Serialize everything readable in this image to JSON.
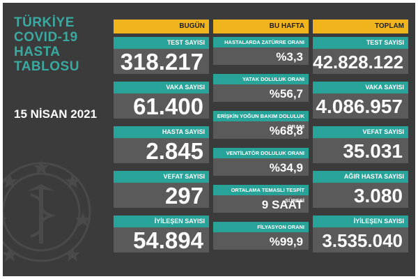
{
  "title_lines": [
    "TÜRKİYE",
    "COVID-19",
    "HASTA",
    "TABLOSU"
  ],
  "date": "15 NİSAN 2021",
  "columns": {
    "today": "BUGÜN",
    "week": "BU HAFTA",
    "total": "TOPLAM"
  },
  "today": [
    {
      "label": "TEST SAYISI",
      "value": "318.217"
    },
    {
      "label": "VAKA SAYISI",
      "value": "61.400"
    },
    {
      "label": "HASTA SAYISI",
      "value": "2.845"
    },
    {
      "label": "VEFAT SAYISI",
      "value": "297"
    },
    {
      "label": "İYİLEŞEN SAYISI",
      "value": "54.894"
    }
  ],
  "week": [
    {
      "label": "HASTALARDA ZATÜRRE ORANI",
      "value": "%3,3"
    },
    {
      "label": "YATAK DOLULUK ORANI",
      "value": "%56,7"
    },
    {
      "label": "ERİŞKİN YOĞUN BAKIM DOLULUK ORANI",
      "value": "%68,8"
    },
    {
      "label": "VENTİLATÖR DOLULUK ORANI",
      "value": "%34,9"
    },
    {
      "label": "ORTALAMA TEMASLI TESPİT SÜRESİ",
      "value": "9 SAAT"
    },
    {
      "label": "FİLYASYON ORANI",
      "value": "%99,9"
    }
  ],
  "total": [
    {
      "label": "TEST SAYISI",
      "value": "42.828.122"
    },
    {
      "label": "VAKA SAYISI",
      "value": "4.086.957"
    },
    {
      "label": "VEFAT SAYISI",
      "value": "35.031"
    },
    {
      "label": "AĞIR HASTA SAYISI",
      "value": "3.080"
    },
    {
      "label": "İYİLEŞEN SAYISI",
      "value": "3.535.040"
    }
  ],
  "colors": {
    "background": "#3b3b3b",
    "teal": "#27a39a",
    "gold": "#f0b51d",
    "value_bg": "#5a5a5a"
  }
}
